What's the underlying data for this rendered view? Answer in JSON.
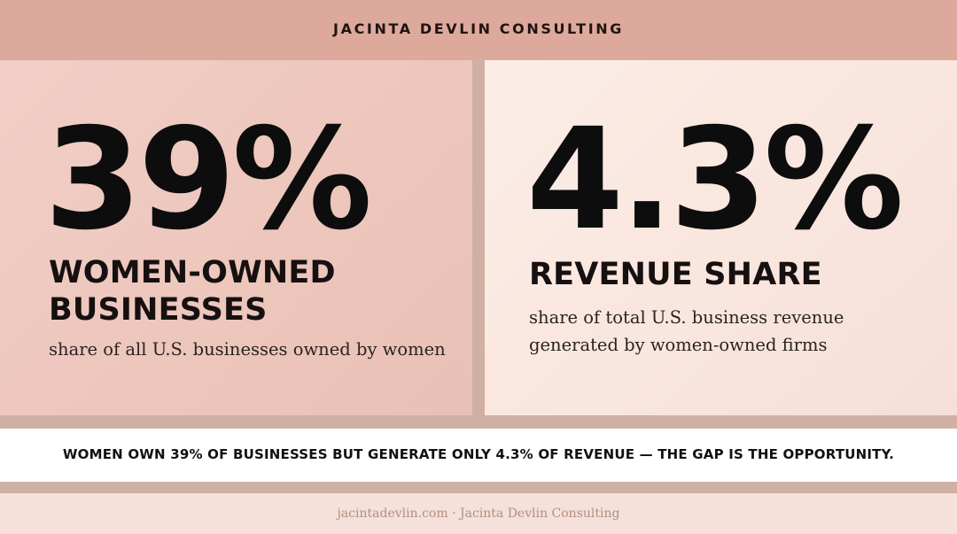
{
  "header": {
    "title": "JACINTA DEVLIN CONSULTING"
  },
  "stats": [
    {
      "value": "39%",
      "label": "WOMEN-OWNED BUSINESSES",
      "description": "share of all U.S. businesses owned by women"
    },
    {
      "value": "4.3%",
      "label": "REVENUE SHARE",
      "description": "share of total U.S. business revenue generated by women-owned firms"
    }
  ],
  "banner": {
    "text": "WOMEN OWN 39% OF BUSINESSES BUT GENERATE ONLY 4.3% OF REVENUE — THE GAP IS THE OPPORTUNITY."
  },
  "footer": {
    "text": "jacintadevlin.com · Jacinta Devlin Consulting"
  },
  "colors": {
    "header_bg": "#dea99d",
    "left_panel_bg": "#edc6bc",
    "right_panel_bg": "#f9e6de",
    "divider": "#cfb0a3",
    "banner_bg": "#ffffff",
    "footer_text": "#b38e80"
  }
}
